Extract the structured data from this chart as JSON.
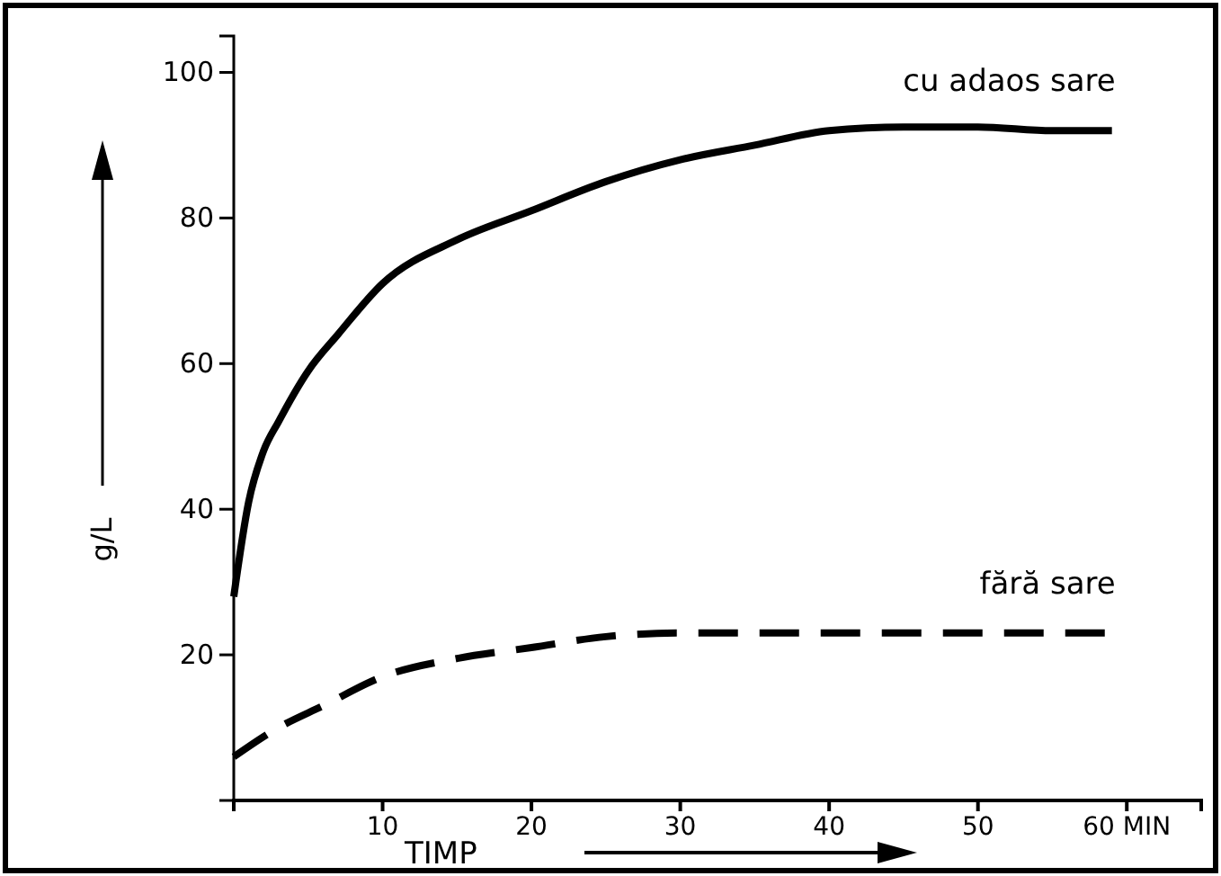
{
  "chart_data": {
    "type": "line",
    "xlabel": "TIMP",
    "ylabel": "g/L",
    "xlim": [
      0,
      65
    ],
    "ylim": [
      0,
      105
    ],
    "xticks": [
      10,
      20,
      30,
      40,
      50,
      {
        "value": 60,
        "label": "60 MIN"
      }
    ],
    "yticks": [
      20,
      40,
      60,
      80,
      100
    ],
    "grid": false,
    "legend": false,
    "marker": "none",
    "series": [
      {
        "name": "cu adaos sare",
        "color": "#000000",
        "line_style": "solid",
        "x": [
          0,
          1,
          2,
          3,
          5,
          7,
          10,
          15,
          20,
          25,
          30,
          35,
          40,
          45,
          50,
          55,
          59
        ],
        "values": [
          28,
          41,
          48,
          52,
          59,
          64,
          71,
          77,
          81,
          85,
          88,
          90,
          92,
          92.5,
          92.5,
          92,
          92
        ]
      },
      {
        "name": "fără sare",
        "color": "#000000",
        "line_style": "dashed",
        "x": [
          0,
          3,
          6,
          10,
          15,
          20,
          25,
          30,
          40,
          50,
          59
        ],
        "values": [
          6,
          10,
          13,
          17,
          19.5,
          21,
          22.5,
          23,
          23,
          23,
          23
        ]
      }
    ]
  }
}
